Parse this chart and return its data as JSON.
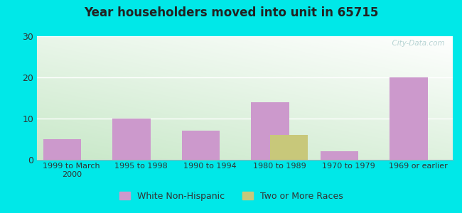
{
  "title": "Year householders moved into unit in 65715",
  "categories": [
    "1999 to March\n2000",
    "1995 to 1998",
    "1990 to 1994",
    "1980 to 1989",
    "1970 to 1979",
    "1969 or earlier"
  ],
  "white_non_hispanic": [
    5,
    10,
    7,
    14,
    2,
    20
  ],
  "two_or_more_races": [
    0,
    0,
    0,
    6,
    0,
    0
  ],
  "bar_color_white": "#cc99cc",
  "bar_color_two": "#c8c87a",
  "background_outer": "#00e8e8",
  "plot_bg_top": "#ffffff",
  "plot_bg_bottom": "#c8e8c8",
  "ylim": [
    0,
    30
  ],
  "yticks": [
    0,
    10,
    20,
    30
  ],
  "bar_width": 0.55,
  "bar_gap": 0.55,
  "legend_labels": [
    "White Non-Hispanic",
    "Two or More Races"
  ],
  "watermark": "  City-Data.com"
}
